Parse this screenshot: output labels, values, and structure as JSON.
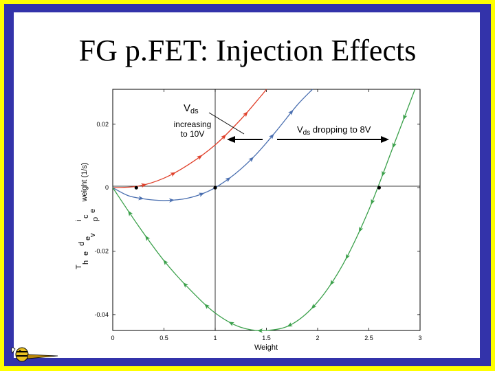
{
  "slide": {
    "title": "FG p.FET: Injection Effects",
    "frame_color": "#ffff00",
    "border_color": "#3333aa"
  },
  "chart_data": {
    "type": "line",
    "title": "",
    "xlabel": "Weight",
    "ylabel": "weight (1/s)",
    "xlim": [
      0,
      3
    ],
    "ylim": [
      -0.045,
      0.031
    ],
    "xticks": [
      0,
      0.5,
      1,
      1.5,
      2,
      2.5,
      3
    ],
    "xtick_labels": [
      "0",
      "0.5",
      "1",
      "1.5",
      "2",
      "2.5",
      "3"
    ],
    "yticks": [
      0.02,
      0,
      -0.02,
      -0.04
    ],
    "ytick_labels": [
      "0.02",
      "0",
      "-0.02",
      "-0.04"
    ],
    "grid": false,
    "reference_lines": {
      "x": 1,
      "y": 0
    },
    "series": [
      {
        "name": "red",
        "color": "#e0402a",
        "x": [
          0,
          0.25,
          0.5,
          0.75,
          1.0,
          1.25,
          1.45,
          1.5
        ],
        "y": [
          0,
          0.0005,
          0.003,
          0.0075,
          0.0135,
          0.0215,
          0.029,
          0.031
        ]
      },
      {
        "name": "blue",
        "color": "#4a6fb0",
        "x": [
          0,
          0.15,
          0.3,
          0.45,
          0.55,
          0.7,
          0.85,
          1.0,
          1.2,
          1.4,
          1.6,
          1.8,
          1.95
        ],
        "y": [
          0,
          -0.0025,
          -0.0035,
          -0.004,
          -0.004,
          -0.0035,
          -0.0022,
          0,
          0.0045,
          0.0105,
          0.018,
          0.026,
          0.031
        ]
      },
      {
        "name": "green",
        "color": "#3aa04a",
        "x": [
          0,
          0.25,
          0.5,
          0.75,
          1.0,
          1.25,
          1.5,
          1.75,
          2.0,
          2.25,
          2.5,
          2.75,
          2.95
        ],
        "y": [
          0,
          -0.012,
          -0.023,
          -0.032,
          -0.0395,
          -0.044,
          -0.045,
          -0.043,
          -0.036,
          -0.024,
          -0.007,
          0.014,
          0.031
        ]
      }
    ],
    "markers": [
      {
        "x": 0.23,
        "y": 0
      },
      {
        "x": 1.0,
        "y": 0
      },
      {
        "x": 2.6,
        "y": 0
      }
    ],
    "annotations": {
      "vds_label_main": "V",
      "vds_label_sub": "ds",
      "increasing_line1": "increasing",
      "increasing_line2": "to 10V",
      "dropping_main": "V",
      "dropping_sub": "ds",
      "dropping_rest": " dropping to 8V"
    },
    "rotated_overlap_letters": [
      "T",
      "h",
      "e",
      "d",
      "e",
      "v",
      "i",
      "c",
      "e",
      "p"
    ]
  }
}
